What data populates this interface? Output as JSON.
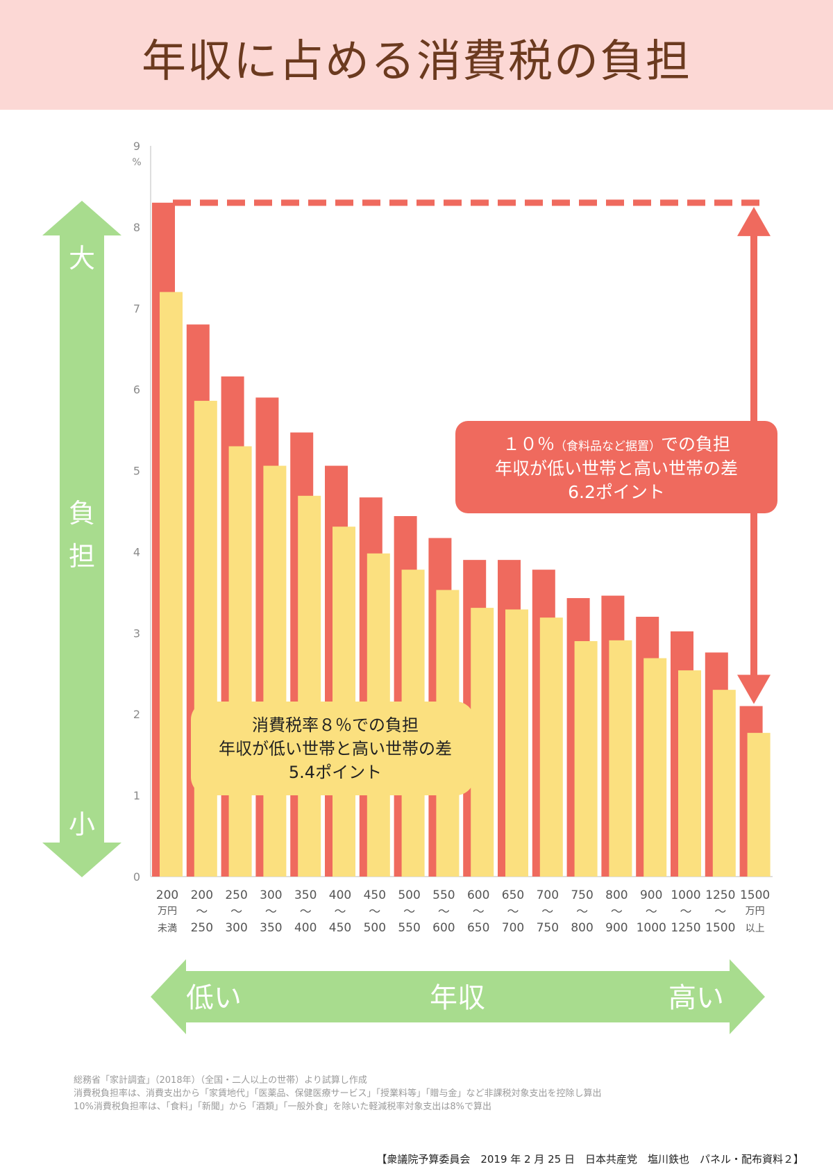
{
  "title": "年収に占める消費税の負担",
  "chart_data": {
    "type": "bar",
    "unit_label": "%",
    "ylim": [
      0,
      9
    ],
    "y_ticks": [
      "0",
      "1",
      "2",
      "3",
      "4",
      "5",
      "6",
      "7",
      "8",
      "9"
    ],
    "categories": [
      {
        "line1": "200",
        "line2": "万円",
        "line3": "未満"
      },
      {
        "line1": "200",
        "line2": "〜",
        "line3": "250"
      },
      {
        "line1": "250",
        "line2": "〜",
        "line3": "300"
      },
      {
        "line1": "300",
        "line2": "〜",
        "line3": "350"
      },
      {
        "line1": "350",
        "line2": "〜",
        "line3": "400"
      },
      {
        "line1": "400",
        "line2": "〜",
        "line3": "450"
      },
      {
        "line1": "450",
        "line2": "〜",
        "line3": "500"
      },
      {
        "line1": "500",
        "line2": "〜",
        "line3": "550"
      },
      {
        "line1": "550",
        "line2": "〜",
        "line3": "600"
      },
      {
        "line1": "600",
        "line2": "〜",
        "line3": "650"
      },
      {
        "line1": "650",
        "line2": "〜",
        "line3": "700"
      },
      {
        "line1": "700",
        "line2": "〜",
        "line3": "750"
      },
      {
        "line1": "750",
        "line2": "〜",
        "line3": "800"
      },
      {
        "line1": "800",
        "line2": "〜",
        "line3": "900"
      },
      {
        "line1": "900",
        "line2": "〜",
        "line3": "1000"
      },
      {
        "line1": "1000",
        "line2": "〜",
        "line3": "1250"
      },
      {
        "line1": "1250",
        "line2": "〜",
        "line3": "1500"
      },
      {
        "line1": "1500",
        "line2": "万円",
        "line3": "以上"
      }
    ],
    "series": [
      {
        "color": "#ef6a5e",
        "values": [
          8.3,
          6.8,
          6.16,
          5.9,
          5.47,
          5.06,
          4.67,
          4.44,
          4.17,
          3.9,
          3.9,
          3.78,
          3.43,
          3.46,
          3.2,
          3.02,
          2.76,
          2.1
        ]
      },
      {
        "color": "#fbe07f",
        "values": [
          7.2,
          5.86,
          5.3,
          5.06,
          4.69,
          4.31,
          3.98,
          3.78,
          3.53,
          3.31,
          3.29,
          3.19,
          2.9,
          2.91,
          2.69,
          2.54,
          2.3,
          1.77
        ]
      }
    ],
    "reference_line": {
      "value": 8.3,
      "color": "#ef6a5e"
    },
    "vertical_arrow": {
      "from": 8.3,
      "to": 2.1,
      "color": "#ef6a5e"
    },
    "callout_10": {
      "line1": "１０％",
      "line1_small": "（食料品など据置）",
      "line1_end": "での負担",
      "line2": "年収が低い世帯と高い世帯の差",
      "line3": "6.2ポイント",
      "color": "#ef6a5e"
    },
    "callout_8": {
      "line1": "消費税率８％での負担",
      "line2": "年収が低い世帯と高い世帯の差",
      "line3": "5.4ポイント",
      "color": "#fbe07f"
    },
    "y_arrow": {
      "top": "大",
      "middle1": "負",
      "middle2": "担",
      "bottom": "小",
      "color": "#a8dc8e"
    },
    "x_arrow": {
      "left": "低い",
      "center": "年収",
      "right": "高い",
      "color": "#a8dc8e"
    }
  },
  "footnotes": [
    "総務省「家計調査」（2018年）（全国・二人以上の世帯）より試算し作成",
    "消費税負担率は、消費支出から「家賃地代」「医薬品、保健医療サービス」「授業料等」「贈与金」など非課税対象支出を控除し算出",
    "10%消費税負担率は、「食料」「新聞」から「酒類」「一般外食」を除いた軽減税率対象支出は8%で算出"
  ],
  "credit": "【衆議院予算委員会　2019 年 2 月 25 日　日本共産党　塩川鉄也　パネル・配布資料２】"
}
